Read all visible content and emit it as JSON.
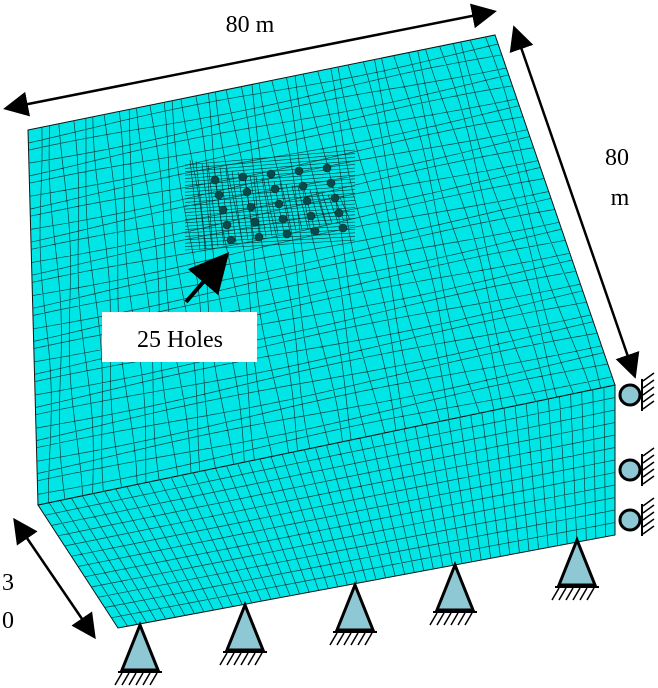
{
  "labels": {
    "top_dimension": "80 m",
    "right_dimension": [
      "80",
      "m"
    ],
    "left_dimension": [
      "3",
      "0"
    ],
    "callout": "25 Holes"
  }
}
